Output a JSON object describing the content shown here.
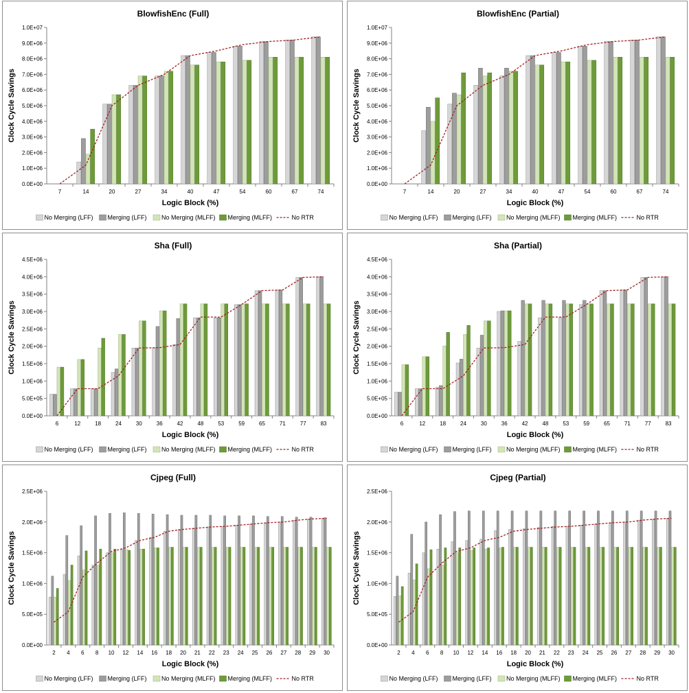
{
  "legend_labels": [
    "No Merging (LFF)",
    "Merging (LFF)",
    "No Merging (MLFF)",
    "Merging (MLFF)",
    "No RTR"
  ],
  "colors": {
    "no_merging_lff": "#d6d6d6",
    "merging_lff": "#9d9d9d",
    "no_merging_mlff": "#d3e4b8",
    "merging_mlff": "#6e9b3a",
    "no_rtr": "#a31f22",
    "panel_border": "#8c8c8c",
    "axis": "#808080"
  },
  "chart_data": [
    {
      "type": "bar",
      "title": "BlowfishEnc (Full)",
      "xlabel": "Logic Block (%)",
      "ylabel": "Clock Cycle Savings",
      "ylim": [
        0,
        10000000
      ],
      "yticks": [
        "0.0E+00",
        "1.0E+06",
        "2.0E+06",
        "3.0E+06",
        "4.0E+06",
        "5.0E+06",
        "6.0E+06",
        "7.0E+06",
        "8.0E+06",
        "9.0E+06",
        "1.0E+07"
      ],
      "categories": [
        "7",
        "14",
        "20",
        "27",
        "34",
        "40",
        "47",
        "54",
        "60",
        "67",
        "74"
      ],
      "legend_position": "bottom",
      "grid": false,
      "series": [
        {
          "name": "No Merging (LFF)",
          "values": [
            0,
            1400000,
            5100000,
            6300000,
            6900000,
            8200000,
            8400000,
            8800000,
            9100000,
            9200000,
            9400000
          ]
        },
        {
          "name": "Merging (LFF)",
          "values": [
            0,
            2900000,
            5100000,
            6300000,
            6900000,
            8200000,
            8400000,
            8800000,
            9100000,
            9200000,
            9400000
          ]
        },
        {
          "name": "No Merging (MLFF)",
          "values": [
            0,
            1900000,
            5700000,
            6900000,
            7200000,
            7600000,
            7800000,
            7900000,
            8100000,
            8100000,
            8100000
          ]
        },
        {
          "name": "Merging (MLFF)",
          "values": [
            0,
            3500000,
            5700000,
            6900000,
            7200000,
            7600000,
            7800000,
            7900000,
            8100000,
            8100000,
            8100000
          ]
        },
        {
          "name": "No RTR",
          "type": "line",
          "values": [
            0,
            1200000,
            5000000,
            6300000,
            7000000,
            8200000,
            8500000,
            8900000,
            9100000,
            9200000,
            9400000
          ]
        }
      ]
    },
    {
      "type": "bar",
      "title": "BlowfishEnc (Partial)",
      "xlabel": "Logic Block (%)",
      "ylabel": "Clock Cycle Savings",
      "ylim": [
        0,
        10000000
      ],
      "yticks": [
        "0.0E+00",
        "1.0E+06",
        "2.0E+06",
        "3.0E+06",
        "4.0E+06",
        "5.0E+06",
        "6.0E+06",
        "7.0E+06",
        "8.0E+06",
        "9.0E+06",
        "1.0E+07"
      ],
      "categories": [
        "7",
        "14",
        "20",
        "27",
        "34",
        "40",
        "47",
        "54",
        "60",
        "67",
        "74"
      ],
      "legend_position": "bottom",
      "grid": false,
      "series": [
        {
          "name": "No Merging (LFF)",
          "values": [
            0,
            3400000,
            5100000,
            6300000,
            6900000,
            8200000,
            8400000,
            8800000,
            9100000,
            9200000,
            9400000
          ]
        },
        {
          "name": "Merging (LFF)",
          "values": [
            0,
            4900000,
            5800000,
            7400000,
            7400000,
            8200000,
            8400000,
            8800000,
            9100000,
            9200000,
            9400000
          ]
        },
        {
          "name": "No Merging (MLFF)",
          "values": [
            0,
            4000000,
            5700000,
            6900000,
            7200000,
            7600000,
            7800000,
            7900000,
            8100000,
            8100000,
            8100000
          ]
        },
        {
          "name": "Merging (MLFF)",
          "values": [
            0,
            5500000,
            7100000,
            7100000,
            7200000,
            7600000,
            7800000,
            7900000,
            8100000,
            8100000,
            8100000
          ]
        },
        {
          "name": "No RTR",
          "type": "line",
          "values": [
            0,
            1200000,
            5000000,
            6300000,
            7000000,
            8200000,
            8500000,
            8900000,
            9100000,
            9200000,
            9400000
          ]
        }
      ]
    },
    {
      "type": "bar",
      "title": "Sha (Full)",
      "xlabel": "Logic Block (%)",
      "ylabel": "Clock Cycle Savings",
      "ylim": [
        0,
        4500000
      ],
      "yticks": [
        "0.0E+00",
        "5.0E+05",
        "1.0E+06",
        "1.5E+06",
        "2.0E+06",
        "2.5E+06",
        "3.0E+06",
        "3.5E+06",
        "4.0E+06",
        "4.5E+06"
      ],
      "categories": [
        "6",
        "12",
        "18",
        "24",
        "30",
        "36",
        "42",
        "48",
        "53",
        "59",
        "65",
        "71",
        "77",
        "83"
      ],
      "legend_position": "bottom",
      "grid": false,
      "series": [
        {
          "name": "No Merging (LFF)",
          "values": [
            620000,
            780000,
            780000,
            1250000,
            1950000,
            1960000,
            2050000,
            2820000,
            2820000,
            3200000,
            3600000,
            3620000,
            3980000,
            4000000
          ]
        },
        {
          "name": "Merging (LFF)",
          "values": [
            620000,
            780000,
            780000,
            1350000,
            1950000,
            2570000,
            2800000,
            2820000,
            2820000,
            3200000,
            3600000,
            3620000,
            3980000,
            4000000
          ]
        },
        {
          "name": "No Merging (MLFF)",
          "values": [
            1400000,
            1620000,
            1950000,
            2340000,
            2730000,
            3020000,
            3220000,
            3220000,
            3220000,
            3220000,
            3220000,
            3220000,
            3220000,
            3220000
          ]
        },
        {
          "name": "Merging (MLFF)",
          "values": [
            1400000,
            1620000,
            2230000,
            2340000,
            2730000,
            3020000,
            3220000,
            3220000,
            3220000,
            3220000,
            3220000,
            3220000,
            3220000,
            3220000
          ]
        },
        {
          "name": "No RTR",
          "type": "line",
          "values": [
            0,
            780000,
            780000,
            1150000,
            1950000,
            1960000,
            2050000,
            2840000,
            2840000,
            3200000,
            3600000,
            3620000,
            3980000,
            4000000
          ]
        }
      ]
    },
    {
      "type": "bar",
      "title": "Sha (Partial)",
      "xlabel": "Logic Block (%)",
      "ylabel": "Clock Cycle Savings",
      "ylim": [
        0,
        4500000
      ],
      "yticks": [
        "0.0E+00",
        "5.0E+05",
        "1.0E+06",
        "1.5E+06",
        "2.0E+06",
        "2.5E+06",
        "3.0E+06",
        "3.5E+06",
        "4.0E+06",
        "4.5E+06"
      ],
      "categories": [
        "6",
        "12",
        "18",
        "24",
        "30",
        "36",
        "42",
        "48",
        "53",
        "59",
        "65",
        "71",
        "77",
        "83"
      ],
      "legend_position": "bottom",
      "grid": false,
      "series": [
        {
          "name": "No Merging (LFF)",
          "values": [
            680000,
            780000,
            820000,
            1520000,
            1950000,
            3000000,
            2140000,
            2820000,
            2820000,
            3200000,
            3600000,
            3620000,
            3980000,
            4000000
          ]
        },
        {
          "name": "Merging (LFF)",
          "values": [
            680000,
            780000,
            870000,
            1630000,
            2320000,
            3020000,
            3320000,
            3320000,
            3320000,
            3320000,
            3600000,
            3620000,
            3980000,
            4000000
          ]
        },
        {
          "name": "No Merging (MLFF)",
          "values": [
            1470000,
            1700000,
            2010000,
            2340000,
            2730000,
            3020000,
            3220000,
            3220000,
            3220000,
            3220000,
            3220000,
            3220000,
            3220000,
            3220000
          ]
        },
        {
          "name": "Merging (MLFF)",
          "values": [
            1470000,
            1700000,
            2400000,
            2600000,
            2730000,
            3020000,
            3220000,
            3220000,
            3220000,
            3220000,
            3220000,
            3220000,
            3220000,
            3220000
          ]
        },
        {
          "name": "No RTR",
          "type": "line",
          "values": [
            0,
            780000,
            780000,
            1150000,
            1950000,
            1960000,
            2050000,
            2840000,
            2840000,
            3200000,
            3600000,
            3620000,
            3980000,
            4000000
          ]
        }
      ]
    },
    {
      "type": "bar",
      "title": "Cjpeg (Full)",
      "xlabel": "Logic Block (%)",
      "ylabel": "Clock Cycle Savings",
      "ylim": [
        0,
        2500000
      ],
      "yticks": [
        "0.0E+00",
        "5.0E+05",
        "1.0E+06",
        "1.5E+06",
        "2.0E+06",
        "2.5E+06"
      ],
      "categories": [
        "2",
        "4",
        "6",
        "8",
        "10",
        "12",
        "14",
        "16",
        "18",
        "20",
        "21",
        "22",
        "23",
        "24",
        "25",
        "26",
        "27",
        "28",
        "29",
        "30"
      ],
      "legend_position": "bottom",
      "grid": false,
      "series": [
        {
          "name": "No Merging (LFF)",
          "values": [
            780000,
            1150000,
            1450000,
            1300000,
            1500000,
            1550000,
            1700000,
            1750000,
            1850000,
            1880000,
            1900000,
            1920000,
            1930000,
            1950000,
            1970000,
            1990000,
            2000000,
            2030000,
            2050000,
            2060000
          ]
        },
        {
          "name": "Merging (LFF)",
          "values": [
            1120000,
            1780000,
            1940000,
            2100000,
            2140000,
            2150000,
            2140000,
            2130000,
            2120000,
            2110000,
            2110000,
            2110000,
            2100000,
            2100000,
            2100000,
            2090000,
            2090000,
            2080000,
            2080000,
            2070000
          ]
        },
        {
          "name": "No Merging (MLFF)",
          "values": [
            780000,
            1050000,
            1220000,
            1300000,
            1500000,
            1550000,
            1560000,
            1580000,
            1590000,
            1590000,
            1590000,
            1590000,
            1590000,
            1590000,
            1590000,
            1590000,
            1590000,
            1590000,
            1590000,
            1590000
          ]
        },
        {
          "name": "Merging (MLFF)",
          "values": [
            920000,
            1300000,
            1530000,
            1560000,
            1560000,
            1540000,
            1560000,
            1580000,
            1590000,
            1590000,
            1590000,
            1590000,
            1590000,
            1590000,
            1590000,
            1590000,
            1590000,
            1590000,
            1590000,
            1590000
          ]
        },
        {
          "name": "No RTR",
          "type": "line",
          "values": [
            370000,
            540000,
            1100000,
            1330000,
            1520000,
            1580000,
            1700000,
            1750000,
            1850000,
            1880000,
            1900000,
            1920000,
            1930000,
            1950000,
            1970000,
            1990000,
            2000000,
            2030000,
            2050000,
            2060000
          ]
        }
      ]
    },
    {
      "type": "bar",
      "title": "Cjpeg (Partial)",
      "xlabel": "Logic Block (%)",
      "ylabel": "Clock Cycle Savings",
      "ylim": [
        0,
        2500000
      ],
      "yticks": [
        "0.0E+00",
        "5.0E+05",
        "1.0E+06",
        "1.5E+06",
        "2.0E+06",
        "2.5E+06"
      ],
      "categories": [
        "2",
        "4",
        "6",
        "8",
        "10",
        "12",
        "14",
        "16",
        "18",
        "20",
        "21",
        "22",
        "23",
        "24",
        "25",
        "26",
        "27",
        "28",
        "29",
        "30"
      ],
      "legend_position": "bottom",
      "grid": false,
      "series": [
        {
          "name": "No Merging (LFF)",
          "values": [
            790000,
            1170000,
            1500000,
            1560000,
            1680000,
            1700000,
            1720000,
            1860000,
            1880000,
            1890000,
            1910000,
            1930000,
            1930000,
            1950000,
            1970000,
            1990000,
            2000000,
            2030000,
            2050000,
            2060000
          ]
        },
        {
          "name": "Merging (LFF)",
          "values": [
            1120000,
            1800000,
            2000000,
            2120000,
            2170000,
            2180000,
            2180000,
            2180000,
            2180000,
            2180000,
            2180000,
            2180000,
            2180000,
            2180000,
            2180000,
            2180000,
            2180000,
            2180000,
            2180000,
            2180000
          ]
        },
        {
          "name": "No Merging (MLFF)",
          "values": [
            800000,
            1060000,
            1240000,
            1300000,
            1500000,
            1540000,
            1560000,
            1580000,
            1590000,
            1590000,
            1590000,
            1590000,
            1590000,
            1590000,
            1590000,
            1590000,
            1590000,
            1590000,
            1590000,
            1590000
          ]
        },
        {
          "name": "Merging (MLFF)",
          "values": [
            950000,
            1320000,
            1550000,
            1580000,
            1580000,
            1580000,
            1580000,
            1590000,
            1590000,
            1590000,
            1590000,
            1590000,
            1590000,
            1590000,
            1590000,
            1590000,
            1590000,
            1590000,
            1590000,
            1590000
          ]
        },
        {
          "name": "No RTR",
          "type": "line",
          "values": [
            370000,
            540000,
            1100000,
            1330000,
            1520000,
            1580000,
            1700000,
            1750000,
            1850000,
            1880000,
            1900000,
            1920000,
            1930000,
            1950000,
            1970000,
            1990000,
            2000000,
            2030000,
            2050000,
            2060000
          ]
        }
      ]
    }
  ]
}
